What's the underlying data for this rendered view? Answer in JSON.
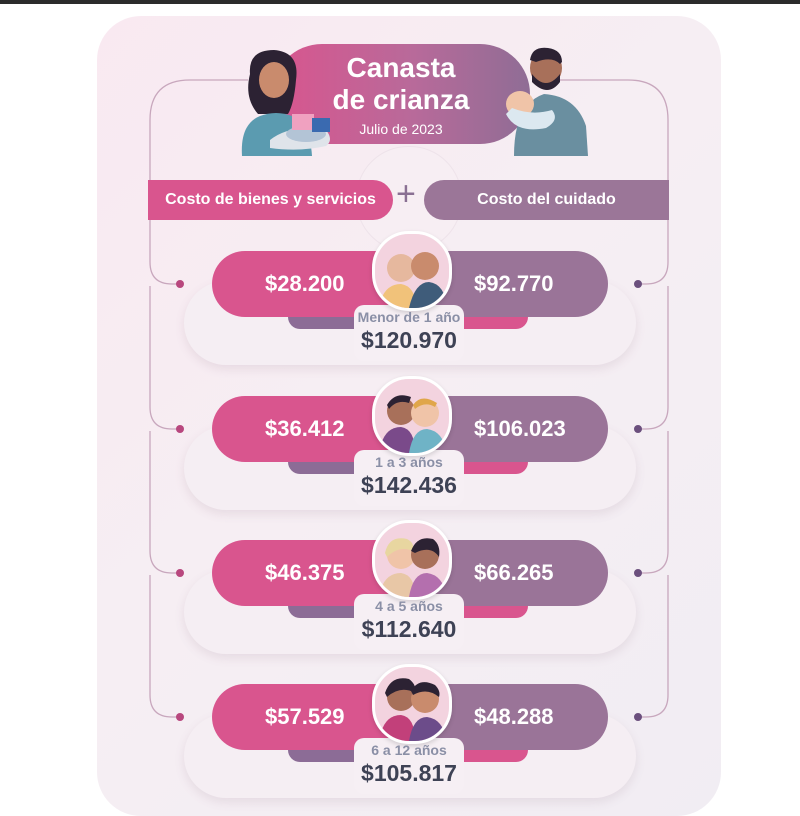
{
  "header": {
    "title_line1": "Canasta",
    "title_line2": "de crianza",
    "subtitle": "Julio de 2023",
    "left_label": "Costo de bienes y servicios",
    "right_label": "Costo del cuidado",
    "plus": "+"
  },
  "rows": [
    {
      "goods": "$28.200",
      "care": "$92.770",
      "age": "Menor de 1 año",
      "total": "$120.970",
      "icon": "baby-siblings-icon"
    },
    {
      "goods": "$36.412",
      "care": "$106.023",
      "age": "1 a 3 años",
      "total": "$142.436",
      "icon": "toddlers-icon"
    },
    {
      "goods": "$46.375",
      "care": "$66.265",
      "age": "4 a 5 años",
      "total": "$112.640",
      "icon": "kids-4-5-icon"
    },
    {
      "goods": "$57.529",
      "care": "$48.288",
      "age": "6 a 12 años",
      "total": "$105.817",
      "icon": "kids-6-12-icon"
    }
  ],
  "colors": {
    "pink": "#d9558e",
    "mauve": "#9a7498",
    "text_dark": "#3e4255",
    "text_grey": "#8a8fa6"
  }
}
